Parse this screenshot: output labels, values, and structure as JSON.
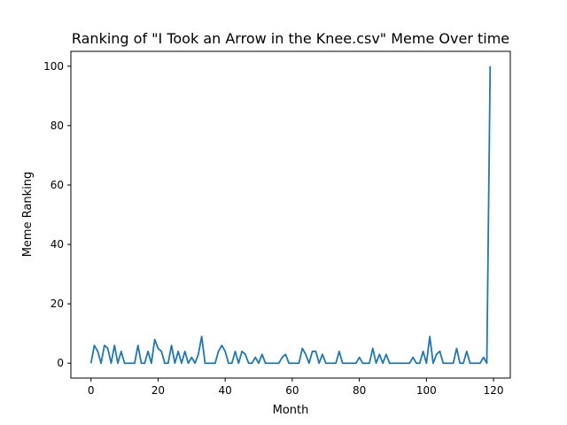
{
  "chart_data": {
    "type": "line",
    "title": "Ranking of \"I Took an Arrow in the Knee.csv\" Meme Over time",
    "xlabel": "Month",
    "ylabel": "Meme Ranking",
    "xlim": [
      -6,
      125
    ],
    "ylim": [
      -5,
      105
    ],
    "xticks": [
      0,
      20,
      40,
      60,
      80,
      100,
      120
    ],
    "yticks": [
      0,
      20,
      40,
      60,
      80,
      100
    ],
    "grid": false,
    "legend": "none",
    "series": [
      {
        "color": "#1f77b4",
        "x": [
          0,
          1,
          2,
          3,
          4,
          5,
          6,
          7,
          8,
          9,
          10,
          11,
          12,
          13,
          14,
          15,
          16,
          17,
          18,
          19,
          20,
          21,
          22,
          23,
          24,
          25,
          26,
          27,
          28,
          29,
          30,
          31,
          32,
          33,
          34,
          35,
          36,
          37,
          38,
          39,
          40,
          41,
          42,
          43,
          44,
          45,
          46,
          47,
          48,
          49,
          50,
          51,
          52,
          53,
          54,
          55,
          56,
          57,
          58,
          59,
          60,
          61,
          62,
          63,
          64,
          65,
          66,
          67,
          68,
          69,
          70,
          71,
          72,
          73,
          74,
          75,
          76,
          77,
          78,
          79,
          80,
          81,
          82,
          83,
          84,
          85,
          86,
          87,
          88,
          89,
          90,
          91,
          92,
          93,
          94,
          95,
          96,
          97,
          98,
          99,
          100,
          101,
          102,
          103,
          104,
          105,
          106,
          107,
          108,
          109,
          110,
          111,
          112,
          113,
          114,
          115,
          116,
          117,
          118,
          119
        ],
        "y": [
          0,
          6,
          4,
          0,
          6,
          5,
          0,
          6,
          0,
          4,
          0,
          0,
          0,
          0,
          6,
          0,
          0,
          4,
          0,
          8,
          5,
          4,
          0,
          0,
          6,
          0,
          4,
          0,
          4,
          0,
          2,
          0,
          3,
          9,
          0,
          0,
          0,
          0,
          4,
          6,
          4,
          0,
          0,
          4,
          0,
          4,
          3,
          0,
          0,
          2,
          0,
          3,
          0,
          0,
          0,
          0,
          0,
          2,
          3,
          0,
          0,
          0,
          0,
          5,
          3,
          0,
          4,
          4,
          0,
          3,
          0,
          0,
          0,
          0,
          4,
          0,
          0,
          0,
          0,
          0,
          2,
          0,
          0,
          0,
          5,
          0,
          3,
          0,
          3,
          0,
          0,
          0,
          0,
          0,
          0,
          0,
          2,
          0,
          0,
          4,
          0,
          9,
          0,
          3,
          4,
          0,
          0,
          0,
          0,
          5,
          0,
          0,
          4,
          0,
          0,
          0,
          0,
          2,
          0,
          100
        ]
      }
    ]
  }
}
